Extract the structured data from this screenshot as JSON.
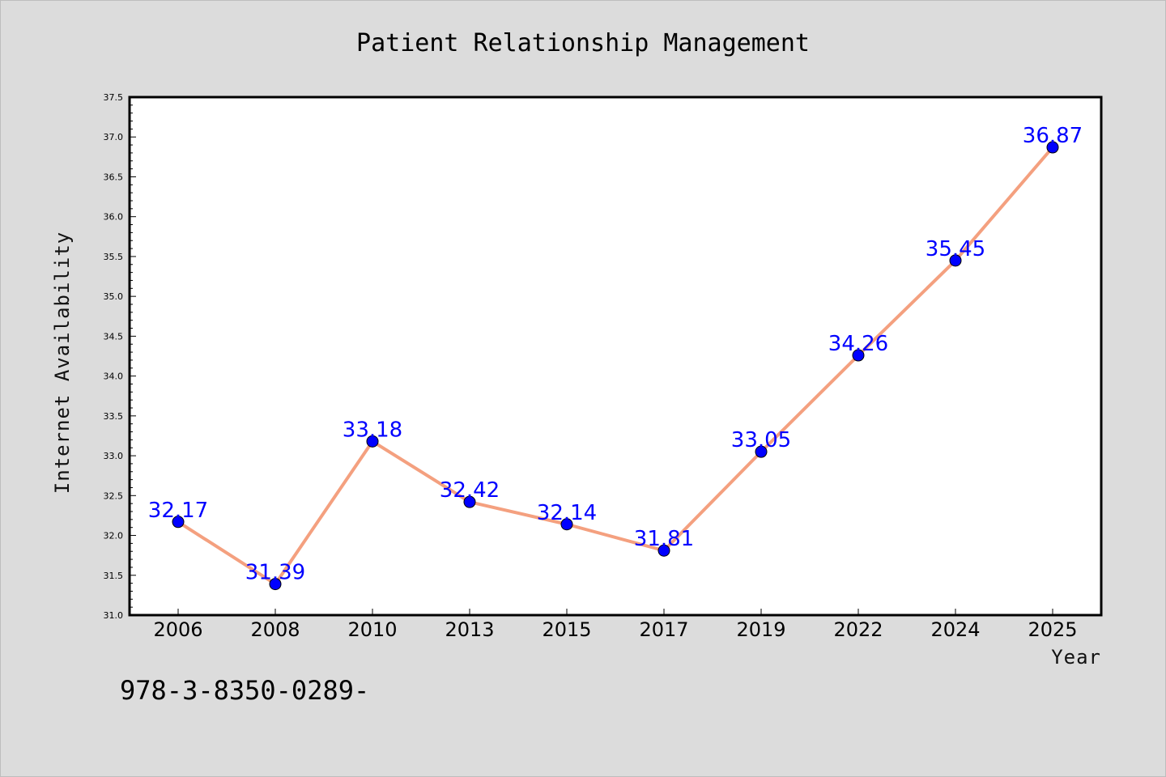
{
  "chart_data": {
    "type": "line",
    "title": "Patient Relationship Management",
    "xlabel": "Year",
    "ylabel": "Internet Availability",
    "categories": [
      "2006",
      "2008",
      "2010",
      "2013",
      "2015",
      "2017",
      "2019",
      "2022",
      "2024",
      "2025"
    ],
    "values": [
      32.17,
      31.39,
      33.18,
      32.42,
      32.14,
      31.81,
      33.05,
      34.26,
      35.45,
      36.87
    ],
    "data_labels": [
      "32.17",
      "31.39",
      "33.18",
      "32.42",
      "32.14",
      "31.81",
      "33.05",
      "34.26",
      "35.45",
      "36.87"
    ],
    "ylim": [
      31.0,
      37.5
    ],
    "yticks": [
      "31.0",
      "31.5",
      "32.0",
      "32.5",
      "33.0",
      "33.5",
      "34.0",
      "34.5",
      "35.0",
      "35.5",
      "36.0",
      "36.5",
      "37.0",
      "37.5"
    ],
    "grid": false,
    "line_color": "#f4a07f",
    "marker_color": "#0000ff",
    "label_color": "#0000ff",
    "background": "#dcdcdc",
    "plot_background": "#ffffff"
  },
  "footer_text": "978-3-8350-0289-"
}
